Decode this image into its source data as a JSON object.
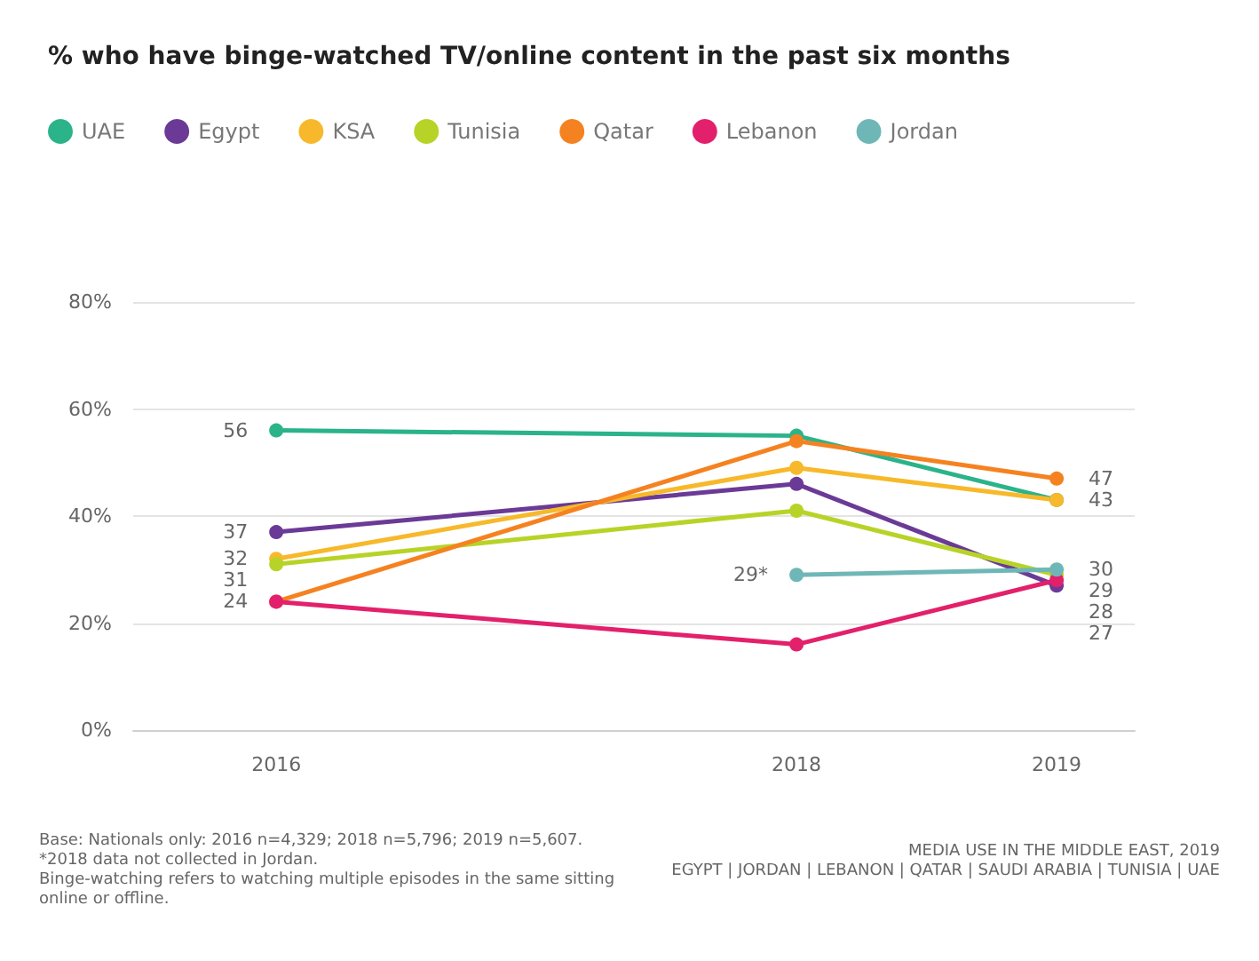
{
  "chart_data": {
    "type": "line",
    "title": "% who have binge-watched TV/online content in the past six months",
    "x": [
      2016,
      2018,
      2019
    ],
    "xlim": [
      2015.45,
      2019.3
    ],
    "xticks": [
      2016,
      2018,
      2019
    ],
    "ylim": [
      0,
      80
    ],
    "yticks": [
      {
        "value": 0,
        "label": "0%"
      },
      {
        "value": 20,
        "label": "20%"
      },
      {
        "value": 40,
        "label": "40%"
      },
      {
        "value": 60,
        "label": "60%"
      },
      {
        "value": 80,
        "label": "80%"
      }
    ],
    "series": [
      {
        "name": "UAE",
        "color": "#2bb38a",
        "values": [
          56,
          55,
          43
        ],
        "value_labels": [
          "56",
          null,
          null
        ]
      },
      {
        "name": "Egypt",
        "color": "#6b3a96",
        "values": [
          37,
          46,
          27
        ],
        "value_labels": [
          "37",
          null,
          "27"
        ]
      },
      {
        "name": "KSA",
        "color": "#f7b92b",
        "values": [
          32,
          49,
          43
        ],
        "value_labels": [
          "32",
          null,
          "43"
        ]
      },
      {
        "name": "Tunisia",
        "color": "#b8d327",
        "values": [
          31,
          41,
          29
        ],
        "value_labels": [
          "31",
          null,
          "29"
        ]
      },
      {
        "name": "Qatar",
        "color": "#f58220",
        "values": [
          24,
          54,
          47
        ],
        "value_labels": [
          "24",
          null,
          "47"
        ]
      },
      {
        "name": "Lebanon",
        "color": "#e3206b",
        "values": [
          24,
          16,
          28
        ],
        "value_labels": [
          null,
          null,
          "28"
        ]
      },
      {
        "name": "Jordan",
        "color": "#6fb7b7",
        "values": [
          null,
          29,
          30
        ],
        "value_labels": [
          null,
          "29*",
          "30"
        ]
      }
    ],
    "grid": "y",
    "legend": "top left",
    "marker": "circle",
    "line_style": "solid",
    "annotations": [
      "Base: Nationals only: 2016 n=4,329; 2018 n=5,796; 2019 n=5,607.",
      "*2018 data not collected in Jordan.",
      "Binge-watching refers to watching multiple episodes in the same sitting online or offline.",
      "MEDIA USE IN THE MIDDLE EAST, 2019",
      "EGYPT | JORDAN | LEBANON | QATAR | SAUDI ARABIA | TUNISIA | UAE"
    ]
  }
}
